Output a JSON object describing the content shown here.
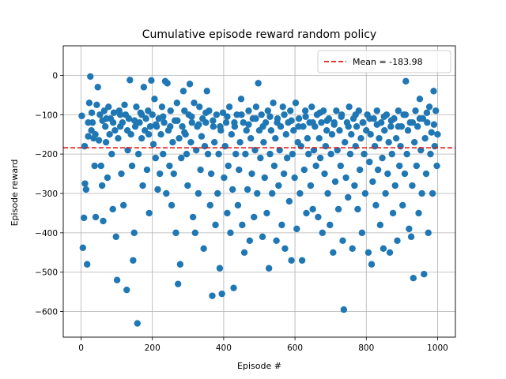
{
  "chart_data": {
    "type": "scatter",
    "title": "Cumulative episode reward random policy",
    "xlabel": "Episode #",
    "ylabel": "Episode reward",
    "xlim": [
      -50,
      1050
    ],
    "ylim": [
      -665,
      75
    ],
    "xticks": [
      0,
      200,
      400,
      600,
      800,
      1000
    ],
    "yticks": [
      0,
      -100,
      -200,
      -300,
      -400,
      -500,
      -600
    ],
    "grid": true,
    "legend_position": "top-right",
    "mean_line": {
      "label": "Mean = -183.98",
      "value": -183.98,
      "color": "#e41a1c",
      "style": "dashed"
    },
    "point_color": "#1f77b4",
    "points": [
      [
        2,
        -103
      ],
      [
        5,
        -438
      ],
      [
        8,
        -362
      ],
      [
        11,
        -275
      ],
      [
        14,
        -290
      ],
      [
        17,
        -480
      ],
      [
        20,
        -155
      ],
      [
        23,
        -70
      ],
      [
        26,
        -3
      ],
      [
        29,
        -140
      ],
      [
        32,
        -120
      ],
      [
        35,
        -160
      ],
      [
        38,
        -230
      ],
      [
        41,
        -360
      ],
      [
        44,
        -75
      ],
      [
        47,
        -30
      ],
      [
        50,
        -165
      ],
      [
        53,
        -100
      ],
      [
        56,
        -230
      ],
      [
        59,
        -280
      ],
      [
        62,
        -370
      ],
      [
        65,
        -90
      ],
      [
        68,
        -130
      ],
      [
        71,
        -110
      ],
      [
        74,
        -260
      ],
      [
        77,
        -80
      ],
      [
        80,
        -150
      ],
      [
        83,
        -110
      ],
      [
        86,
        -200
      ],
      [
        89,
        -340
      ],
      [
        92,
        -95
      ],
      [
        95,
        -140
      ],
      [
        98,
        -410
      ],
      [
        101,
        -520
      ],
      [
        104,
        -160
      ],
      [
        107,
        -90
      ],
      [
        110,
        -130
      ],
      [
        113,
        -250
      ],
      [
        116,
        -120
      ],
      [
        119,
        -330
      ],
      [
        122,
        -75
      ],
      [
        125,
        -100
      ],
      [
        128,
        -545
      ],
      [
        131,
        -190
      ],
      [
        134,
        -110
      ],
      [
        137,
        -12
      ],
      [
        140,
        -150
      ],
      [
        143,
        -230
      ],
      [
        146,
        -470
      ],
      [
        149,
        -400
      ],
      [
        152,
        -130
      ],
      [
        155,
        -80
      ],
      [
        158,
        -630
      ],
      [
        161,
        -200
      ],
      [
        164,
        -120
      ],
      [
        167,
        -95
      ],
      [
        170,
        -160
      ],
      [
        173,
        -280
      ],
      [
        176,
        -30
      ],
      [
        179,
        -140
      ],
      [
        182,
        -110
      ],
      [
        185,
        -240
      ],
      [
        188,
        -90
      ],
      [
        191,
        -350
      ],
      [
        194,
        -130
      ],
      [
        197,
        -13
      ],
      [
        200,
        -100
      ],
      [
        203,
        -175
      ],
      [
        206,
        -60
      ],
      [
        209,
        -210
      ],
      [
        212,
        -130
      ],
      [
        215,
        -290
      ],
      [
        218,
        -110
      ],
      [
        221,
        -250
      ],
      [
        224,
        -150
      ],
      [
        227,
        -80
      ],
      [
        230,
        -200
      ],
      [
        233,
        -120
      ],
      [
        236,
        -15
      ],
      [
        239,
        -300
      ],
      [
        242,
        -20
      ],
      [
        245,
        -140
      ],
      [
        248,
        -230
      ],
      [
        251,
        -90
      ],
      [
        254,
        -330
      ],
      [
        257,
        -170
      ],
      [
        260,
        -250
      ],
      [
        263,
        -115
      ],
      [
        266,
        -400
      ],
      [
        269,
        -70
      ],
      [
        272,
        -530
      ],
      [
        275,
        -160
      ],
      [
        278,
        -480
      ],
      [
        281,
        -210
      ],
      [
        284,
        -130
      ],
      [
        287,
        -40
      ],
      [
        290,
        -90
      ],
      [
        293,
        -150
      ],
      [
        296,
        -200
      ],
      [
        299,
        -280
      ],
      [
        302,
        -100
      ],
      [
        305,
        -22
      ],
      [
        308,
        -170
      ],
      [
        311,
        -120
      ],
      [
        314,
        -360
      ],
      [
        317,
        -70
      ],
      [
        320,
        -400
      ],
      [
        323,
        -190
      ],
      [
        326,
        -130
      ],
      [
        329,
        -300
      ],
      [
        332,
        -80
      ],
      [
        335,
        -240
      ],
      [
        338,
        -155
      ],
      [
        341,
        -110
      ],
      [
        344,
        -440
      ],
      [
        347,
        -180
      ],
      [
        350,
        -120
      ],
      [
        353,
        -40
      ],
      [
        356,
        -200
      ],
      [
        359,
        -90
      ],
      [
        362,
        -330
      ],
      [
        365,
        -250
      ],
      [
        368,
        -560
      ],
      [
        371,
        -130
      ],
      [
        374,
        -170
      ],
      [
        377,
        -380
      ],
      [
        380,
        -100
      ],
      [
        383,
        -300
      ],
      [
        386,
        -200
      ],
      [
        389,
        -490
      ],
      [
        392,
        -140
      ],
      [
        395,
        -555
      ],
      [
        398,
        -95
      ],
      [
        401,
        -260
      ],
      [
        404,
        -180
      ],
      [
        407,
        -120
      ],
      [
        410,
        -350
      ],
      [
        413,
        -230
      ],
      [
        416,
        -80
      ],
      [
        419,
        -400
      ],
      [
        422,
        -150
      ],
      [
        425,
        -290
      ],
      [
        428,
        -540
      ],
      [
        431,
        -130
      ],
      [
        434,
        -200
      ],
      [
        437,
        -100
      ],
      [
        440,
        -330
      ],
      [
        443,
        -240
      ],
      [
        446,
        -170
      ],
      [
        449,
        -60
      ],
      [
        452,
        -380
      ],
      [
        455,
        -120
      ],
      [
        458,
        -450
      ],
      [
        461,
        -200
      ],
      [
        464,
        -140
      ],
      [
        467,
        -290
      ],
      [
        470,
        -90
      ],
      [
        473,
        -420
      ],
      [
        476,
        -160
      ],
      [
        479,
        -250
      ],
      [
        482,
        -110
      ],
      [
        485,
        -360
      ],
      [
        488,
        -190
      ],
      [
        491,
        -80
      ],
      [
        494,
        -300
      ],
      [
        497,
        -20
      ],
      [
        500,
        -140
      ],
      [
        503,
        -210
      ],
      [
        506,
        -100
      ],
      [
        509,
        -410
      ],
      [
        512,
        -170
      ],
      [
        515,
        -260
      ],
      [
        518,
        -120
      ],
      [
        521,
        -350
      ],
      [
        524,
        -90
      ],
      [
        527,
        -490
      ],
      [
        530,
        -200
      ],
      [
        533,
        -140
      ],
      [
        536,
        -300
      ],
      [
        539,
        -70
      ],
      [
        542,
        -230
      ],
      [
        545,
        -160
      ],
      [
        548,
        -420
      ],
      [
        551,
        -110
      ],
      [
        554,
        -280
      ],
      [
        557,
        -190
      ],
      [
        560,
        -130
      ],
      [
        563,
        -380
      ],
      [
        566,
        -80
      ],
      [
        569,
        -250
      ],
      [
        572,
        -440
      ],
      [
        575,
        -150
      ],
      [
        578,
        -210
      ],
      [
        581,
        -120
      ],
      [
        584,
        -320
      ],
      [
        587,
        -90
      ],
      [
        590,
        -470
      ],
      [
        593,
        -200
      ],
      [
        596,
        -140
      ],
      [
        599,
        -260
      ],
      [
        602,
        -70
      ],
      [
        605,
        -390
      ],
      [
        608,
        -170
      ],
      [
        611,
        -110
      ],
      [
        614,
        -300
      ],
      [
        617,
        -180
      ],
      [
        620,
        -470
      ],
      [
        623,
        -130
      ],
      [
        626,
        -240
      ],
      [
        629,
        -90
      ],
      [
        632,
        -350
      ],
      [
        635,
        -160
      ],
      [
        638,
        -200
      ],
      [
        641,
        -120
      ],
      [
        644,
        -280
      ],
      [
        647,
        -80
      ],
      [
        650,
        -340
      ],
      [
        653,
        -190
      ],
      [
        656,
        -130
      ],
      [
        659,
        -230
      ],
      [
        662,
        -100
      ],
      [
        665,
        -360
      ],
      [
        668,
        -160
      ],
      [
        671,
        -210
      ],
      [
        674,
        -120
      ],
      [
        677,
        -400
      ],
      [
        680,
        -90
      ],
      [
        683,
        -250
      ],
      [
        686,
        -180
      ],
      [
        689,
        -140
      ],
      [
        692,
        -300
      ],
      [
        695,
        -110
      ],
      [
        698,
        -380
      ],
      [
        701,
        -200
      ],
      [
        704,
        -150
      ],
      [
        707,
        -450
      ],
      [
        710,
        -120
      ],
      [
        713,
        -270
      ],
      [
        716,
        -90
      ],
      [
        719,
        -190
      ],
      [
        722,
        -340
      ],
      [
        725,
        -140
      ],
      [
        728,
        -230
      ],
      [
        731,
        -100
      ],
      [
        734,
        -420
      ],
      [
        737,
        -595
      ],
      [
        740,
        -170
      ],
      [
        743,
        -260
      ],
      [
        746,
        -120
      ],
      [
        749,
        -310
      ],
      [
        752,
        -80
      ],
      [
        755,
        -200
      ],
      [
        758,
        -150
      ],
      [
        761,
        -440
      ],
      [
        764,
        -110
      ],
      [
        767,
        -280
      ],
      [
        770,
        -180
      ],
      [
        773,
        -130
      ],
      [
        776,
        -340
      ],
      [
        779,
        -90
      ],
      [
        782,
        -240
      ],
      [
        785,
        -160
      ],
      [
        788,
        -400
      ],
      [
        791,
        -120
      ],
      [
        794,
        -200
      ],
      [
        797,
        -300
      ],
      [
        800,
        -140
      ],
      [
        803,
        -100
      ],
      [
        806,
        -450
      ],
      [
        809,
        -220
      ],
      [
        812,
        -150
      ],
      [
        815,
        -480
      ],
      [
        818,
        -270
      ],
      [
        821,
        -110
      ],
      [
        824,
        -180
      ],
      [
        827,
        -330
      ],
      [
        830,
        -90
      ],
      [
        833,
        -240
      ],
      [
        836,
        -160
      ],
      [
        839,
        -380
      ],
      [
        842,
        -120
      ],
      [
        845,
        -210
      ],
      [
        848,
        -440
      ],
      [
        851,
        -140
      ],
      [
        854,
        -300
      ],
      [
        857,
        -100
      ],
      [
        860,
        -250
      ],
      [
        863,
        -170
      ],
      [
        866,
        -450
      ],
      [
        869,
        -130
      ],
      [
        872,
        -200
      ],
      [
        875,
        -350
      ],
      [
        878,
        -110
      ],
      [
        881,
        -280
      ],
      [
        884,
        -160
      ],
      [
        887,
        -420
      ],
      [
        890,
        -90
      ],
      [
        893,
        -230
      ],
      [
        896,
        -180
      ],
      [
        899,
        -130
      ],
      [
        902,
        -330
      ],
      [
        905,
        -100
      ],
      [
        908,
        -250
      ],
      [
        911,
        -15
      ],
      [
        914,
        -200
      ],
      [
        917,
        -140
      ],
      [
        920,
        -390
      ],
      [
        923,
        -120
      ],
      [
        926,
        -410
      ],
      [
        929,
        -280
      ],
      [
        932,
        -515
      ],
      [
        935,
        -170
      ],
      [
        938,
        -90
      ],
      [
        941,
        -230
      ],
      [
        944,
        -130
      ],
      [
        947,
        -350
      ],
      [
        950,
        -60
      ],
      [
        953,
        -190
      ],
      [
        956,
        -300
      ],
      [
        959,
        -110
      ],
      [
        962,
        -505
      ],
      [
        965,
        -160
      ],
      [
        968,
        -250
      ],
      [
        971,
        -120
      ],
      [
        974,
        -400
      ],
      [
        977,
        -80
      ],
      [
        980,
        -200
      ],
      [
        983,
        -145
      ],
      [
        986,
        -300
      ],
      [
        989,
        -40
      ],
      [
        992,
        -180
      ],
      [
        995,
        -90
      ],
      [
        998,
        -230
      ],
      [
        1000,
        -150
      ],
      [
        10,
        -180
      ],
      [
        20,
        -120
      ],
      [
        30,
        -95
      ],
      [
        40,
        -150
      ],
      [
        60,
        -115
      ],
      [
        70,
        -170
      ],
      [
        90,
        -120
      ],
      [
        110,
        -100
      ],
      [
        130,
        -140
      ],
      [
        150,
        -115
      ],
      [
        170,
        -100
      ],
      [
        190,
        -150
      ],
      [
        210,
        -125
      ],
      [
        230,
        -105
      ],
      [
        250,
        -130
      ],
      [
        270,
        -115
      ],
      [
        290,
        -145
      ],
      [
        310,
        -105
      ],
      [
        330,
        -125
      ],
      [
        350,
        -95
      ],
      [
        370,
        -115
      ],
      [
        390,
        -130
      ],
      [
        410,
        -105
      ],
      [
        430,
        -120
      ],
      [
        450,
        -100
      ],
      [
        470,
        -125
      ],
      [
        490,
        -110
      ],
      [
        510,
        -130
      ],
      [
        530,
        -105
      ],
      [
        550,
        -120
      ],
      [
        570,
        -100
      ],
      [
        590,
        -115
      ],
      [
        610,
        -130
      ],
      [
        630,
        -105
      ],
      [
        650,
        -120
      ],
      [
        670,
        -95
      ],
      [
        690,
        -115
      ],
      [
        710,
        -125
      ],
      [
        730,
        -105
      ],
      [
        750,
        -130
      ],
      [
        770,
        -100
      ],
      [
        790,
        -120
      ],
      [
        810,
        -110
      ],
      [
        830,
        -125
      ],
      [
        850,
        -105
      ],
      [
        870,
        -115
      ],
      [
        890,
        -130
      ],
      [
        910,
        -100
      ],
      [
        930,
        -120
      ],
      [
        950,
        -110
      ],
      [
        970,
        -95
      ],
      [
        990,
        -125
      ]
    ]
  }
}
